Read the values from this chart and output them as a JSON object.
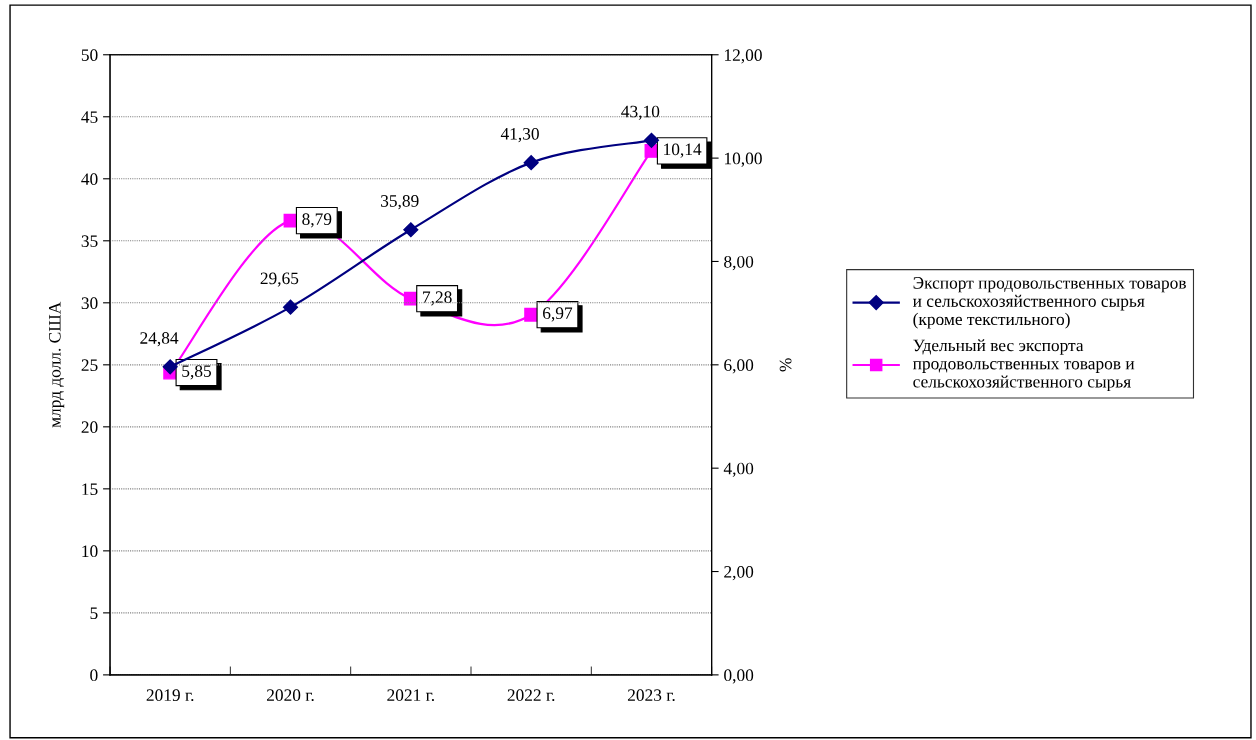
{
  "chart_data": {
    "type": "line",
    "ylabel": "млрд долл. США",
    "y2label": "%",
    "categories": [
      "2019 г.",
      "2020 г.",
      "2021 г.",
      "2022 г.",
      "2023 г."
    ],
    "series": [
      {
        "name": "Экспорт продовольственных товаров\nи сельскохозяйственного сырья\n(кроме текстильного)",
        "color": "#000080",
        "marker": "diamond",
        "values": [
          24.84,
          29.65,
          35.89,
          41.3,
          43.1
        ],
        "value_labels": [
          "24,84",
          "29,65",
          "35,89",
          "41,30",
          "43,10"
        ]
      },
      {
        "name": "Удельный вес экспорта\nпродовольственных товаров и\nсельскохозяйственного сырья",
        "color": "#ff00ff",
        "marker": "square",
        "axis": "y2",
        "values": [
          5.85,
          8.79,
          7.28,
          6.97,
          10.14
        ],
        "value_labels": [
          "5,85",
          "8,79",
          "7,28",
          "6,97",
          "10,14"
        ]
      }
    ],
    "ylim": [
      0,
      50
    ],
    "yticks": [
      0,
      5,
      10,
      15,
      20,
      25,
      30,
      35,
      40,
      45,
      50
    ],
    "y2lim": [
      0,
      12
    ],
    "y2ticks": [
      {
        "value": 0,
        "label": "0,00"
      },
      {
        "value": 2,
        "label": "2,00"
      },
      {
        "value": 4,
        "label": "4,00"
      },
      {
        "value": 6,
        "label": "6,00"
      },
      {
        "value": 8,
        "label": "8,00"
      },
      {
        "value": 10,
        "label": "10,00"
      },
      {
        "value": 12,
        "label": "12,00"
      }
    ],
    "grid": "y",
    "legend": "right",
    "line_style": "solid"
  }
}
